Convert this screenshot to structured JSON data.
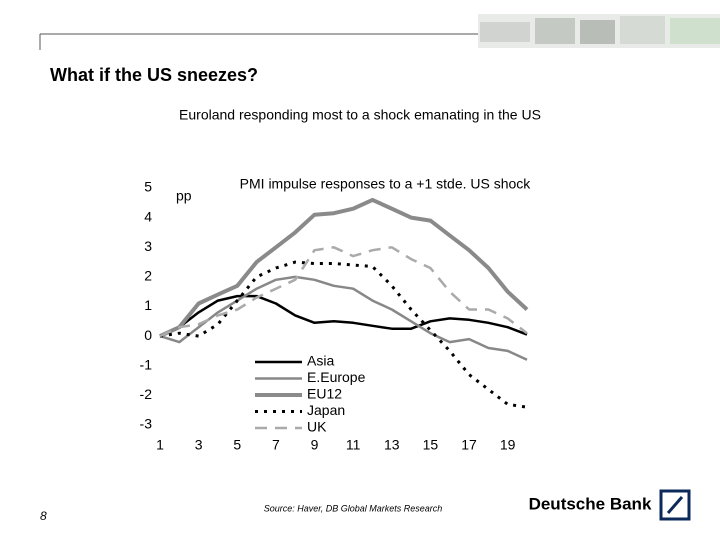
{
  "slide": {
    "title": "What if the US sneezes?",
    "subtitle": "Euroland responding most to a shock emanating in the US",
    "source": "Source: Haver, DB Global Markets Research",
    "page_number": "8",
    "brand": "Deutsche Bank"
  },
  "chart_data": {
    "type": "line",
    "title": "PMI impulse responses to a +1 stde. US shock",
    "y_unit": "pp",
    "x": [
      1,
      2,
      3,
      4,
      5,
      6,
      7,
      8,
      9,
      10,
      11,
      12,
      13,
      14,
      15,
      16,
      17,
      18,
      19,
      20
    ],
    "xlim": [
      1,
      20
    ],
    "xticks": [
      1,
      3,
      5,
      7,
      9,
      11,
      13,
      15,
      17,
      19
    ],
    "ylim": [
      -3,
      5
    ],
    "yticks": [
      -3,
      -2,
      -1,
      0,
      1,
      2,
      3,
      4,
      5
    ],
    "legend": "lower-left",
    "series": [
      {
        "name": "Asia",
        "color": "#000000",
        "style": "solid",
        "values": [
          0,
          0.3,
          0.8,
          1.2,
          1.35,
          1.35,
          1.1,
          0.7,
          0.45,
          0.5,
          0.45,
          0.35,
          0.25,
          0.25,
          0.5,
          0.6,
          0.55,
          0.45,
          0.3,
          0.05
        ]
      },
      {
        "name": "E.Europe",
        "color": "#888888",
        "style": "solid",
        "values": [
          0,
          -0.2,
          0.3,
          0.8,
          1.2,
          1.6,
          1.9,
          2.0,
          1.9,
          1.7,
          1.6,
          1.2,
          0.9,
          0.5,
          0.1,
          -0.2,
          -0.1,
          -0.4,
          -0.5,
          -0.8
        ]
      },
      {
        "name": "EU12",
        "color": "#8a8a8a",
        "style": "thick",
        "values": [
          0,
          0.3,
          1.1,
          1.4,
          1.7,
          2.5,
          3.0,
          3.5,
          4.1,
          4.15,
          4.3,
          4.6,
          4.3,
          4.0,
          3.9,
          3.4,
          2.9,
          2.3,
          1.5,
          0.9
        ]
      },
      {
        "name": "Japan",
        "color": "#000000",
        "style": "dotted",
        "values": [
          0,
          0.1,
          0.0,
          0.4,
          1.2,
          2.0,
          2.3,
          2.5,
          2.45,
          2.45,
          2.4,
          2.35,
          1.7,
          0.9,
          0.2,
          -0.5,
          -1.3,
          -1.8,
          -2.3,
          -2.4
        ]
      },
      {
        "name": "UK",
        "color": "#aaaaaa",
        "style": "dashed",
        "values": [
          0,
          0.3,
          0.4,
          0.7,
          0.9,
          1.3,
          1.6,
          1.9,
          2.9,
          3.0,
          2.7,
          2.9,
          3.0,
          2.6,
          2.3,
          1.5,
          0.9,
          0.9,
          0.6,
          0.1
        ]
      }
    ]
  }
}
